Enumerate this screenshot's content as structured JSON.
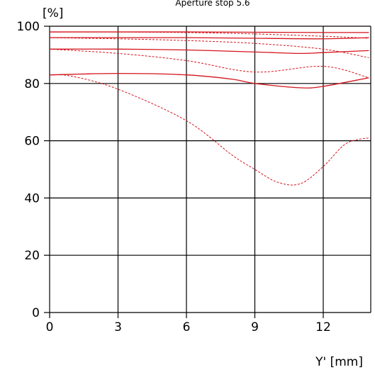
{
  "chart_data": {
    "type": "line",
    "title": "Aperture stop 5.6",
    "ylabel": "[%]",
    "xlabel": "Y' [mm]",
    "xlim": [
      0,
      14
    ],
    "ylim": [
      0,
      100
    ],
    "x_ticks": [
      0,
      3,
      6,
      9,
      12
    ],
    "y_ticks": [
      0,
      20,
      40,
      60,
      80,
      100
    ],
    "grid": true,
    "legend": "none",
    "line_color": "#d4141c",
    "series": [
      {
        "style": "solid",
        "x": [
          0,
          3,
          6,
          9,
          12,
          14
        ],
        "y": [
          98,
          98,
          98,
          97.9,
          97.8,
          97.8
        ]
      },
      {
        "style": "dashed",
        "x": [
          0,
          3,
          6,
          9,
          12,
          14
        ],
        "y": [
          98,
          98,
          97.8,
          97.3,
          96.5,
          95.8
        ]
      },
      {
        "style": "solid",
        "x": [
          0,
          3,
          6,
          9,
          12,
          14
        ],
        "y": [
          96,
          96,
          96,
          95.8,
          95.6,
          96
        ]
      },
      {
        "style": "dashed",
        "x": [
          0,
          3,
          6,
          9,
          12,
          14
        ],
        "y": [
          96,
          95.6,
          95,
          94,
          92,
          89
        ]
      },
      {
        "style": "solid",
        "x": [
          0,
          3,
          6,
          9,
          11,
          12,
          14
        ],
        "y": [
          92,
          92,
          91.7,
          91,
          90.5,
          90.8,
          91.5
        ]
      },
      {
        "style": "dashed",
        "x": [
          0,
          3,
          6,
          9,
          12,
          14
        ],
        "y": [
          92,
          90.5,
          88,
          84,
          86,
          82
        ]
      },
      {
        "style": "solid",
        "x": [
          0,
          3,
          6,
          8,
          9,
          11,
          12,
          14
        ],
        "y": [
          83,
          83.5,
          83,
          81.5,
          80,
          78.5,
          79,
          82
        ]
      },
      {
        "style": "dashed",
        "x": [
          0,
          1,
          3,
          6,
          8,
          9,
          10,
          11,
          12,
          13,
          14
        ],
        "y": [
          83,
          82.5,
          78,
          67,
          55,
          50,
          45.5,
          45,
          51,
          59,
          61
        ]
      }
    ]
  }
}
